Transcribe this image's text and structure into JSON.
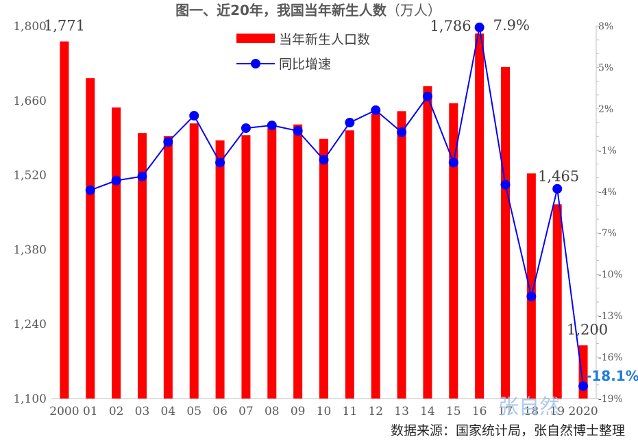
{
  "chart_data": {
    "type": "bar",
    "title": "图一、近20年，我国当年新生人数",
    "title_unit": "（万人）",
    "categories": [
      "2000",
      "01",
      "02",
      "03",
      "04",
      "05",
      "06",
      "07",
      "08",
      "09",
      "10",
      "11",
      "12",
      "13",
      "14",
      "15",
      "16",
      "17",
      "18",
      "19",
      "2020"
    ],
    "series": [
      {
        "name": "当年新生人口数",
        "kind": "bar",
        "color": "#ff0000",
        "axis": "left",
        "values": [
          1771,
          1702,
          1647,
          1599,
          1593,
          1617,
          1585,
          1595,
          1608,
          1615,
          1588,
          1604,
          1635,
          1640,
          1687,
          1655,
          1786,
          1723,
          1523,
          1465,
          1200
        ]
      },
      {
        "name": "同比增速",
        "kind": "line",
        "color": "#0000ff",
        "axis": "right",
        "values": [
          null,
          -3.9,
          -3.2,
          -2.9,
          -0.4,
          1.5,
          -1.9,
          0.6,
          0.8,
          0.4,
          -1.7,
          1.0,
          1.9,
          0.3,
          2.9,
          -1.9,
          7.9,
          -3.5,
          -11.6,
          -3.8,
          -18.1
        ]
      }
    ],
    "y_left": {
      "min": 1100,
      "max": 1800,
      "ticks": [
        1100,
        1240,
        1380,
        1520,
        1660,
        1800
      ],
      "tick_labels": [
        "1,100",
        "1,240",
        "1,380",
        "1,520",
        "1,660",
        "1,800"
      ]
    },
    "y_right": {
      "min": -19,
      "max": 8,
      "ticks": [
        -19,
        -16,
        -13,
        -10,
        -7,
        -4,
        -1,
        2,
        5,
        8
      ],
      "tick_labels": [
        "-19%",
        "-16%",
        "-13%",
        "-10%",
        "-7%",
        "-4%",
        "-1%",
        "2%",
        "5%",
        "8%"
      ]
    },
    "grid": false,
    "legend_position": "top-center",
    "data_labels": [
      {
        "text": "1,771",
        "series": 0,
        "index": 0
      },
      {
        "text": "1,786",
        "series": 0,
        "index": 16
      },
      {
        "text": "7.9%",
        "series": 1,
        "index": 16
      },
      {
        "text": "1,465",
        "series": 0,
        "index": 19
      },
      {
        "text": "1,200",
        "series": 0,
        "index": 20
      },
      {
        "text": "-18.1%",
        "series": 1,
        "index": 20
      }
    ]
  },
  "watermark": "张自然",
  "source_note": "数据来源：国家统计局，张自然博士整理",
  "colors": {
    "bar": "#ff0000",
    "line": "#0000ff",
    "highlight_label": "#1f7be0",
    "axis_text": "#595959",
    "axis_line": "#bfbfbf",
    "watermark": "#9dc3e6"
  }
}
